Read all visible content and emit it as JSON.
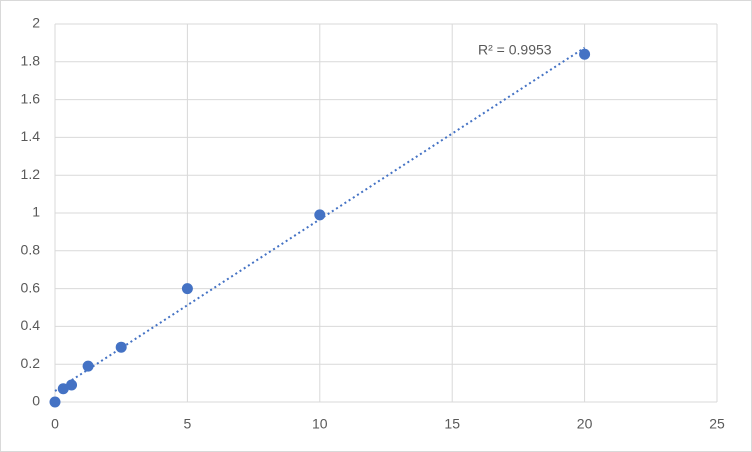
{
  "chart_data": {
    "type": "scatter",
    "annotation": "R² = 0.9953",
    "x": [
      0,
      0.3125,
      0.625,
      1.25,
      2.5,
      5,
      10,
      20
    ],
    "values": [
      0,
      0.07,
      0.09,
      0.19,
      0.29,
      0.6,
      0.99,
      1.84
    ],
    "color": "#4472c4",
    "trendline": "linear",
    "xlim": [
      0,
      25
    ],
    "xticks": [
      0,
      5,
      10,
      15,
      20,
      25
    ],
    "ylim": [
      0,
      2
    ],
    "yticks": [
      0,
      0.2,
      0.4,
      0.6,
      0.8,
      1,
      1.2,
      1.4,
      1.6,
      1.8,
      2
    ],
    "grid": true
  }
}
